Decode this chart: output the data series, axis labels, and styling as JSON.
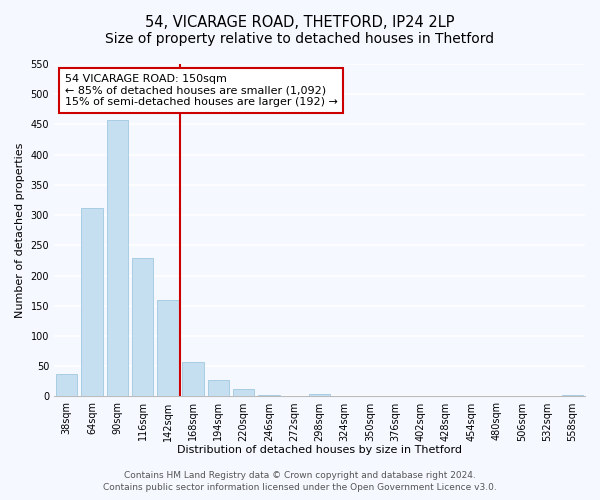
{
  "title": "54, VICARAGE ROAD, THETFORD, IP24 2LP",
  "subtitle": "Size of property relative to detached houses in Thetford",
  "xlabel": "Distribution of detached houses by size in Thetford",
  "ylabel": "Number of detached properties",
  "bar_labels": [
    "38sqm",
    "64sqm",
    "90sqm",
    "116sqm",
    "142sqm",
    "168sqm",
    "194sqm",
    "220sqm",
    "246sqm",
    "272sqm",
    "298sqm",
    "324sqm",
    "350sqm",
    "376sqm",
    "402sqm",
    "428sqm",
    "454sqm",
    "480sqm",
    "506sqm",
    "532sqm",
    "558sqm"
  ],
  "bar_heights": [
    38,
    311,
    457,
    229,
    160,
    57,
    27,
    12,
    3,
    0,
    4,
    0,
    0,
    0,
    0,
    0,
    0,
    0,
    0,
    0,
    3
  ],
  "bar_color": "#c5dff0",
  "bar_edge_color": "#a0c8e0",
  "vline_color": "#cc0000",
  "vline_position": 4.5,
  "annotation_text": "54 VICARAGE ROAD: 150sqm\n← 85% of detached houses are smaller (1,092)\n15% of semi-detached houses are larger (192) →",
  "annotation_box_color": "white",
  "annotation_box_edge_color": "#cc0000",
  "ylim": [
    0,
    550
  ],
  "yticks": [
    0,
    50,
    100,
    150,
    200,
    250,
    300,
    350,
    400,
    450,
    500,
    550
  ],
  "footer1": "Contains HM Land Registry data © Crown copyright and database right 2024.",
  "footer2": "Contains public sector information licensed under the Open Government Licence v3.0.",
  "bg_color": "#f5f8ff",
  "plot_bg_color": "#f5f8ff",
  "grid_color": "#ffffff",
  "title_fontsize": 10.5,
  "label_fontsize": 8,
  "tick_fontsize": 7,
  "annotation_fontsize": 8,
  "footer_fontsize": 6.5
}
